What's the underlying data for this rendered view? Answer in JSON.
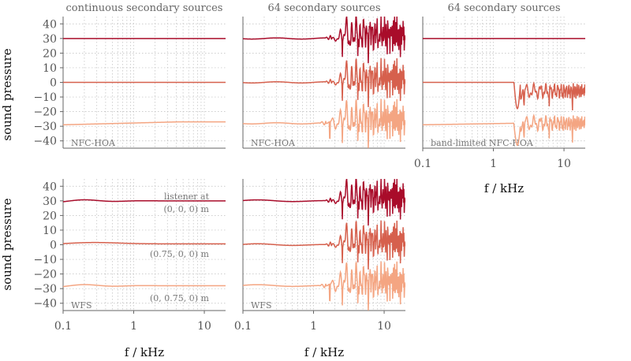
{
  "colors": {
    "top": "#a90c2a",
    "mid": "#d6604d",
    "low": "#f4a582"
  },
  "ylabel": "sound pressure",
  "xlabel": "f / kHz",
  "annotations": {
    "listener_title": "listener at",
    "listener_a": "(0, 0, 0) m",
    "listener_b": "(0.75, 0, 0) m",
    "listener_c": "(0, 0.75, 0) m"
  },
  "chart_data": [
    {
      "type": "line",
      "id": "p1",
      "title": "continuous secondary sources",
      "label": "NFC-HOA",
      "xscale": "log",
      "xlim": [
        0.1,
        20
      ],
      "ylim": [
        -45,
        45
      ],
      "yticks": [
        40,
        30,
        20,
        10,
        0,
        -10,
        -20,
        -30,
        -40
      ],
      "xticks": [],
      "xticklabels": [],
      "series": [
        {
          "level": 30,
          "curve": "flat",
          "color": "top",
          "x": [
            0.1,
            20
          ],
          "y": [
            30,
            30
          ]
        },
        {
          "level": 0,
          "curve": "flat",
          "color": "mid",
          "x": [
            0.1,
            20
          ],
          "y": [
            0,
            0
          ]
        },
        {
          "level": -29,
          "curve": "rise",
          "color": "low",
          "x": [
            0.1,
            1,
            20
          ],
          "y": [
            -29,
            -27.5,
            -27
          ]
        }
      ]
    },
    {
      "type": "line",
      "id": "p2",
      "title": "64 secondary sources",
      "label": "NFC-HOA",
      "xscale": "log",
      "xlim": [
        0.1,
        20
      ],
      "ylim": [
        -45,
        45
      ],
      "yticks": [],
      "xticks": [],
      "xticklabels": [],
      "series": [
        {
          "level": 30,
          "curve": "alias",
          "fc": 1.8,
          "color": "top",
          "x": [
            0.1,
            1.8,
            20
          ],
          "y": [
            30,
            30,
            30
          ]
        },
        {
          "level": 0,
          "curve": "alias",
          "fc": 1.8,
          "color": "mid",
          "x": [
            0.1,
            1.8,
            20
          ],
          "y": [
            0,
            0,
            0
          ]
        },
        {
          "level": -28,
          "curve": "alias",
          "fc": 1.5,
          "color": "low",
          "x": [
            0.1,
            1.5,
            20
          ],
          "y": [
            -28,
            -26,
            -26
          ]
        }
      ]
    },
    {
      "type": "line",
      "id": "p3",
      "title": "64 secondary sources",
      "label": "band-limited NFC-HOA",
      "xscale": "log",
      "xlim": [
        0.1,
        20
      ],
      "ylim": [
        -45,
        45
      ],
      "yticks": [],
      "xticks": [
        0.1,
        1,
        10
      ],
      "xticklabels": [
        "0.1",
        "1",
        "10"
      ],
      "xlabel": "f / kHz",
      "series": [
        {
          "level": 30,
          "curve": "flat",
          "color": "top",
          "x": [
            0.1,
            20
          ],
          "y": [
            30,
            30
          ]
        },
        {
          "level": 0,
          "curve": "bl",
          "fc": 2.3,
          "color": "mid",
          "x": [
            0.1,
            2.3,
            20
          ],
          "y": [
            0,
            -5,
            -2
          ]
        },
        {
          "level": -29,
          "curve": "bl",
          "fc": 2.3,
          "color": "low",
          "x": [
            0.1,
            2.3,
            20
          ],
          "y": [
            -29,
            -26,
            -27
          ]
        }
      ]
    },
    {
      "type": "line",
      "id": "p4",
      "title": "",
      "label": "WFS",
      "xscale": "log",
      "xlim": [
        0.1,
        20
      ],
      "ylim": [
        -45,
        45
      ],
      "yticks": [
        40,
        30,
        20,
        10,
        0,
        -10,
        -20,
        -30,
        -40
      ],
      "xticks": [
        0.1,
        1,
        10
      ],
      "xticklabels": [
        "0.1",
        "1",
        "10"
      ],
      "xlabel": "f / kHz",
      "series": [
        {
          "level": 30,
          "curve": "wfs",
          "color": "top",
          "x": [
            0.1,
            0.2,
            0.3,
            1,
            20
          ],
          "y": [
            31,
            30.5,
            29.5,
            30,
            30
          ]
        },
        {
          "level": 0,
          "curve": "wfs",
          "color": "mid",
          "x": [
            0.1,
            0.2,
            0.4,
            1,
            20
          ],
          "y": [
            0,
            0.8,
            1.5,
            1,
            1
          ]
        },
        {
          "level": -28,
          "curve": "wfs",
          "color": "low",
          "x": [
            0.1,
            0.3,
            1,
            20
          ],
          "y": [
            -28,
            -27.5,
            -27.5,
            -27.5
          ]
        }
      ]
    },
    {
      "type": "line",
      "id": "p5",
      "title": "",
      "label": "WFS",
      "xscale": "log",
      "xlim": [
        0.1,
        20
      ],
      "ylim": [
        -45,
        45
      ],
      "yticks": [],
      "xticks": [
        0.1,
        1,
        10
      ],
      "xticklabels": [
        "0.1",
        "1",
        "10"
      ],
      "xlabel": "f / kHz",
      "series": [
        {
          "level": 30,
          "curve": "walias",
          "fc": 1.8,
          "color": "top",
          "x": [
            0.1,
            1.8,
            20
          ],
          "y": [
            30.5,
            30,
            30
          ]
        },
        {
          "level": 0,
          "curve": "walias",
          "fc": 1.8,
          "color": "mid",
          "x": [
            0.1,
            1.8,
            20
          ],
          "y": [
            0,
            1,
            1
          ]
        },
        {
          "level": -28,
          "curve": "walias",
          "fc": 1.5,
          "color": "low",
          "x": [
            0.1,
            1.5,
            20
          ],
          "y": [
            -28,
            -27,
            -27
          ]
        }
      ]
    }
  ]
}
